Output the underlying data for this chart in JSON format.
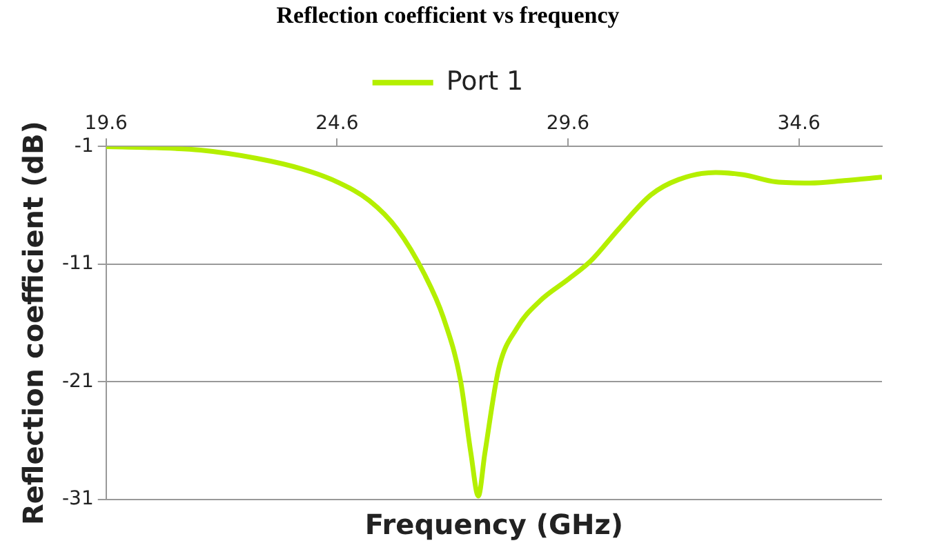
{
  "chart_data": {
    "type": "line",
    "title": "Reflection coefficient vs frequency",
    "xlabel": "Frequency (GHz)",
    "ylabel": "Reflection coefficient (dB)",
    "x": [
      19.6,
      20.66,
      21.64,
      22.86,
      23.84,
      24.6,
      25.3,
      25.9,
      26.5,
      26.9,
      27.27,
      27.5,
      27.66,
      27.8,
      28.1,
      28.5,
      29.0,
      29.6,
      30.1,
      30.7,
      31.4,
      32.0,
      32.8,
      33.4,
      34.1,
      34.84,
      35.58,
      36.4
    ],
    "series": [
      {
        "name": "Port 1",
        "color": "#b4ef00",
        "values": [
          -1.0,
          -1.1,
          -1.3,
          -2.0,
          -2.9,
          -4.0,
          -5.6,
          -8.0,
          -11.9,
          -15.5,
          -20.8,
          -27.1,
          -30.7,
          -27.1,
          -19.9,
          -16.4,
          -14.1,
          -12.3,
          -10.7,
          -8.0,
          -5.1,
          -3.8,
          -3.2,
          -3.4,
          -4.0,
          -4.1,
          -3.9,
          -3.6
        ]
      }
    ],
    "xlim": [
      19.6,
      36.4
    ],
    "xticks": [
      19.6,
      24.6,
      29.6,
      34.6
    ],
    "ylim": [
      -31,
      -1
    ],
    "yticks": [
      -1,
      -11,
      -21,
      -31
    ],
    "grid": "y",
    "legend": "top",
    "marker": "none",
    "line_style": "solid"
  }
}
